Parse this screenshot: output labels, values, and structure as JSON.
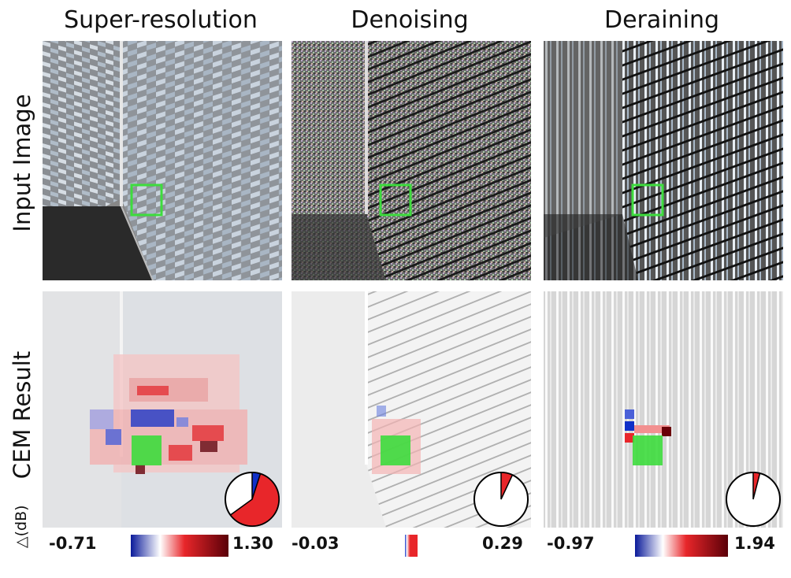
{
  "columns": [
    {
      "title": "Super-resolution",
      "min": "-0.71",
      "max": "1.30",
      "pie_fraction_red": 0.58,
      "pie_fraction_blue": 0.05
    },
    {
      "title": "Denoising",
      "min": "-0.03",
      "max": "0.29",
      "pie_fraction_red": 0.07,
      "pie_fraction_blue": 0.0
    },
    {
      "title": "Deraining",
      "min": "-0.97",
      "max": "1.94",
      "pie_fraction_red": 0.04,
      "pie_fraction_blue": 0.0
    }
  ],
  "rows": [
    {
      "title": "Input Image"
    },
    {
      "title": "CEM Result"
    }
  ],
  "delta_label": "△(dB)",
  "colors": {
    "highlight": "#3ddc3d",
    "positive": "#e8262a",
    "negative": "#1030c8",
    "dark_red": "#6a0008"
  }
}
